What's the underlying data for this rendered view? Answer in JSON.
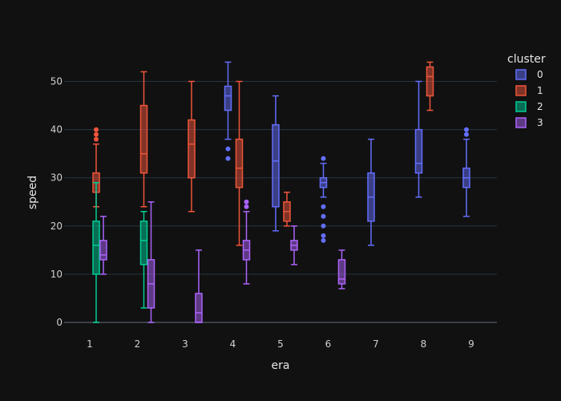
{
  "chart_data": {
    "type": "box",
    "xlabel": "era",
    "ylabel": "speed",
    "x_categories": [
      "1",
      "2",
      "3",
      "4",
      "5",
      "6",
      "7",
      "8",
      "9"
    ],
    "y_ticks": [
      0,
      10,
      20,
      30,
      40,
      50
    ],
    "ylim": [
      -1,
      55
    ],
    "grid": true,
    "legend": {
      "title": "cluster",
      "placement": "right"
    },
    "series": [
      {
        "name": "0",
        "color": "#636efa",
        "boxes": [
          {
            "x": "4",
            "min": 38,
            "q1": 44,
            "median": 47,
            "q3": 49,
            "max": 54,
            "outliers": [
              34,
              36
            ]
          },
          {
            "x": "5",
            "min": 19,
            "q1": 24,
            "median": 33.5,
            "q3": 41,
            "max": 47,
            "outliers": []
          },
          {
            "x": "6",
            "min": 26,
            "q1": 28,
            "median": 29,
            "q3": 30,
            "max": 33,
            "outliers": [
              17,
              18,
              20,
              22,
              24,
              34
            ]
          },
          {
            "x": "7",
            "min": 16,
            "q1": 21,
            "median": 26,
            "q3": 31,
            "max": 38,
            "outliers": []
          },
          {
            "x": "8",
            "min": 26,
            "q1": 31,
            "median": 33,
            "q3": 40,
            "max": 50,
            "outliers": []
          },
          {
            "x": "9",
            "min": 22,
            "q1": 28,
            "median": 30,
            "q3": 32,
            "max": 38,
            "outliers": [
              39,
              40
            ]
          }
        ]
      },
      {
        "name": "1",
        "color": "#ef553b",
        "boxes": [
          {
            "x": "1",
            "min": 24,
            "q1": 27,
            "median": 29,
            "q3": 31,
            "max": 37,
            "outliers": [
              38,
              39,
              40
            ]
          },
          {
            "x": "2",
            "min": 24,
            "q1": 31,
            "median": 35,
            "q3": 45,
            "max": 52,
            "outliers": []
          },
          {
            "x": "3",
            "min": 23,
            "q1": 30,
            "median": 37,
            "q3": 42,
            "max": 50,
            "outliers": []
          },
          {
            "x": "4",
            "min": 16,
            "q1": 28,
            "median": 32,
            "q3": 38,
            "max": 50,
            "outliers": []
          },
          {
            "x": "5",
            "min": 20,
            "q1": 21,
            "median": 23,
            "q3": 25,
            "max": 27,
            "outliers": []
          },
          {
            "x": "8",
            "min": 44,
            "q1": 47,
            "median": 51,
            "q3": 53,
            "max": 54,
            "outliers": []
          }
        ]
      },
      {
        "name": "2",
        "color": "#00cc96",
        "boxes": [
          {
            "x": "1",
            "min": 0,
            "q1": 10,
            "median": 16,
            "q3": 21,
            "max": 29,
            "outliers": []
          },
          {
            "x": "2",
            "min": 3,
            "q1": 12,
            "median": 17,
            "q3": 21,
            "max": 23,
            "outliers": []
          }
        ]
      },
      {
        "name": "3",
        "color": "#ab63fa",
        "boxes": [
          {
            "x": "1",
            "min": 10,
            "q1": 13,
            "median": 14,
            "q3": 17,
            "max": 22,
            "outliers": []
          },
          {
            "x": "2",
            "min": 0,
            "q1": 3,
            "median": 8,
            "q3": 13,
            "max": 25,
            "outliers": []
          },
          {
            "x": "3",
            "min": 0,
            "q1": 0,
            "median": 2,
            "q3": 6,
            "max": 15,
            "outliers": []
          },
          {
            "x": "4",
            "min": 8,
            "q1": 13,
            "median": 15,
            "q3": 17,
            "max": 23,
            "outliers": [
              24,
              25
            ]
          },
          {
            "x": "5",
            "min": 12,
            "q1": 15,
            "median": 16,
            "q3": 17,
            "max": 20,
            "outliers": []
          },
          {
            "x": "6",
            "min": 7,
            "q1": 8,
            "median": 9,
            "q3": 13,
            "max": 15,
            "outliers": []
          }
        ]
      }
    ]
  }
}
